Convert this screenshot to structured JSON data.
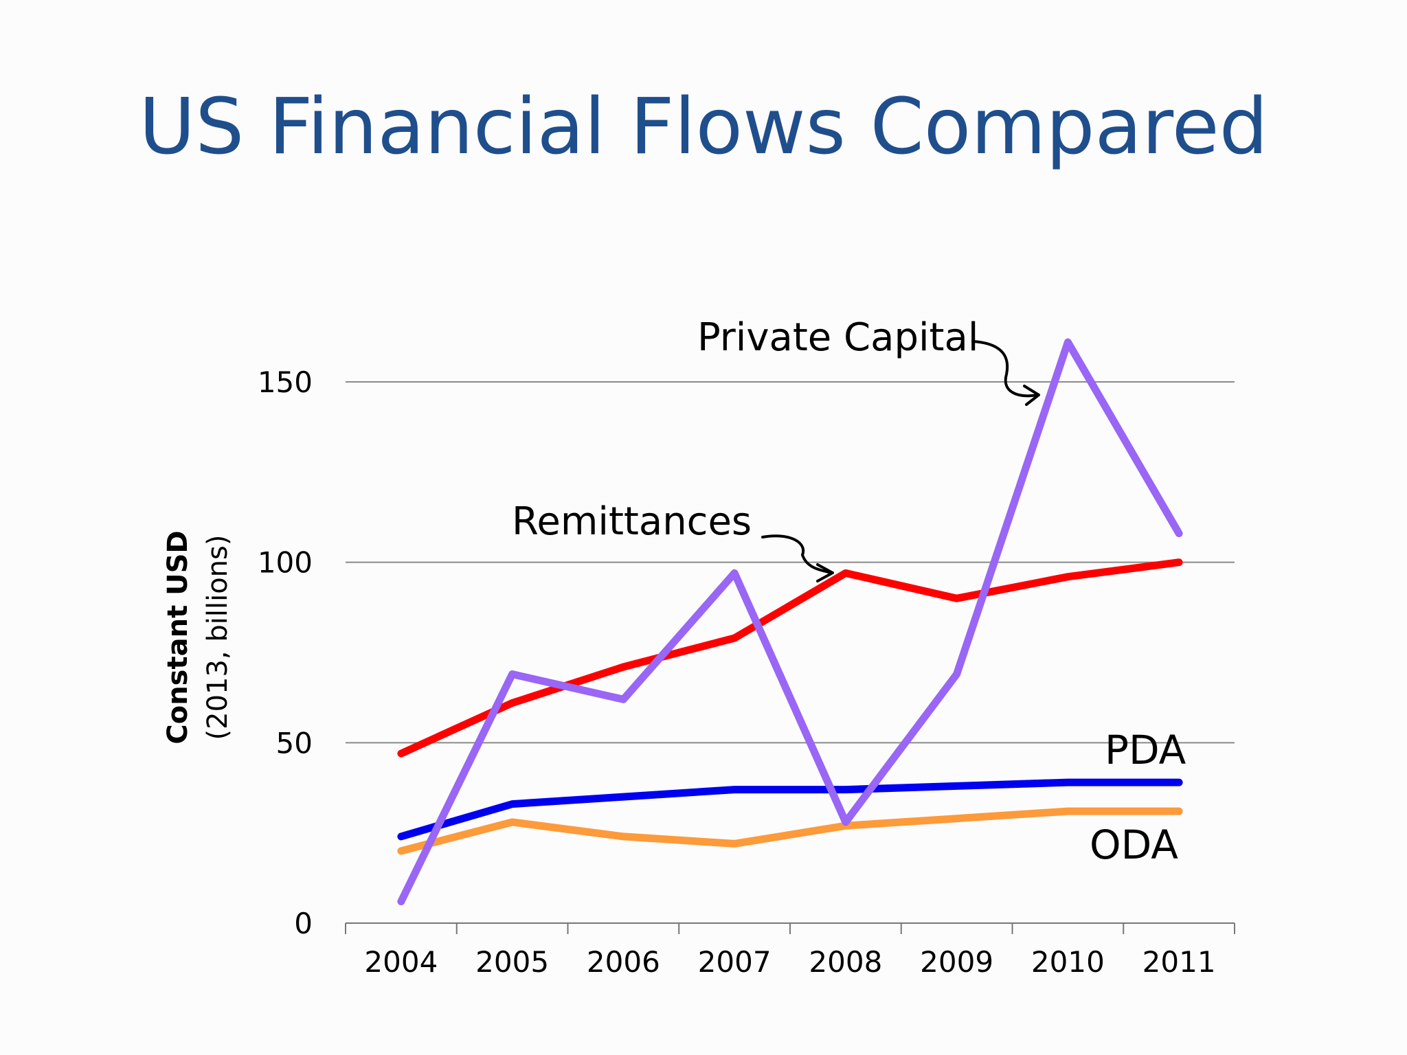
{
  "slide": {
    "title": "US Financial Flows Compared"
  },
  "chart_data": {
    "type": "line",
    "title": "",
    "ylabel_bold": "Constant USD",
    "ylabel_sub": "(2013, billions)",
    "xlabel": "",
    "categories": [
      "2004",
      "2005",
      "2006",
      "2007",
      "2008",
      "2009",
      "2010",
      "2011"
    ],
    "ylim": [
      0,
      150
    ],
    "yticks": [
      0,
      50,
      100,
      150
    ],
    "grid": true,
    "legend": "inline labels",
    "series": [
      {
        "name": "Private Capital",
        "color": "#9966f5",
        "values": [
          6,
          69,
          62,
          97,
          28,
          69,
          161,
          108
        ]
      },
      {
        "name": "Remittances",
        "color": "#ff0000",
        "values": [
          47,
          61,
          71,
          79,
          97,
          90,
          96,
          100
        ]
      },
      {
        "name": "PDA",
        "color": "#0000f0",
        "values": [
          24,
          33,
          35,
          37,
          37,
          38,
          39,
          39
        ]
      },
      {
        "name": "ODA",
        "color": "#fd9a3a",
        "values": [
          20,
          28,
          24,
          22,
          27,
          29,
          31,
          31
        ]
      }
    ]
  }
}
